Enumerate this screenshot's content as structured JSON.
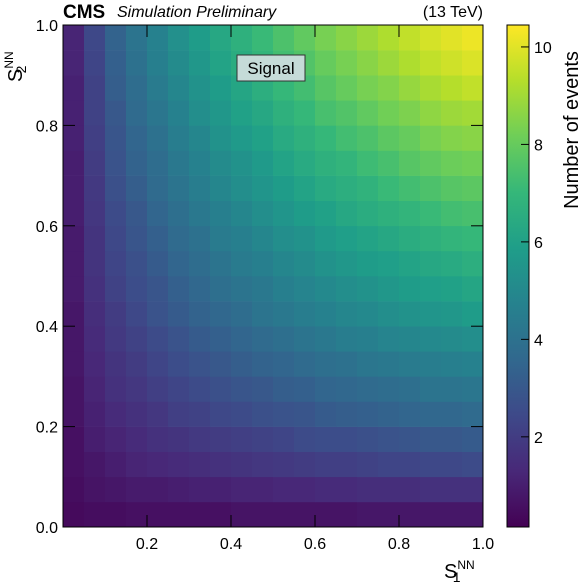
{
  "chart_data": {
    "type": "heatmap",
    "experiment": "CMS",
    "subtitle": "Simulation Preliminary",
    "energy": "(13 TeV)",
    "annotation": "Signal",
    "xlabel": {
      "base": "S",
      "sup": "NN",
      "sub": "1"
    },
    "ylabel": {
      "base": "S",
      "sup": "NN",
      "sub": "2"
    },
    "colorbar_label": "Number of events",
    "colormap": "viridis",
    "xlim": [
      0,
      1
    ],
    "ylim": [
      0,
      1
    ],
    "xticks": [
      0.2,
      0.4,
      0.6,
      0.8,
      {
        "value": 1,
        "label": "1.0"
      }
    ],
    "yticks": [
      {
        "value": 0,
        "label": "0.0"
      },
      0.2,
      0.4,
      0.6,
      0.8,
      {
        "value": 1,
        "label": "1.0"
      }
    ],
    "zlim": [
      0.15,
      10.45
    ],
    "zticks": [
      2,
      4,
      6,
      8,
      10
    ],
    "xbins": [
      0,
      0.05,
      0.1,
      0.15,
      0.2,
      0.25,
      0.3,
      0.35,
      0.4,
      0.45,
      0.5,
      0.55,
      0.6,
      0.65,
      0.7,
      0.75,
      0.8,
      0.85,
      0.9,
      0.95,
      1
    ],
    "ybins": [
      0,
      0.05,
      0.1,
      0.15,
      0.2,
      0.25,
      0.3,
      0.35,
      0.4,
      0.45,
      0.5,
      0.55,
      0.6,
      0.65,
      0.7,
      0.75,
      0.8,
      0.85,
      0.9,
      0.95,
      1
    ],
    "z": [
      [
        0.4,
        0.5,
        0.5,
        0.6,
        0.6,
        0.6,
        0.6,
        0.6,
        0.7,
        0.7,
        0.7,
        0.7,
        0.7,
        0.7,
        0.8,
        0.8,
        0.8,
        0.8,
        0.8,
        0.8
      ],
      [
        0.5,
        0.7,
        0.8,
        0.9,
        0.9,
        1.0,
        1.1,
        1.1,
        1.2,
        1.2,
        1.3,
        1.3,
        1.4,
        1.4,
        1.5,
        1.5,
        1.5,
        1.6,
        1.6,
        1.6
      ],
      [
        0.6,
        0.8,
        1.0,
        1.2,
        1.3,
        1.4,
        1.5,
        1.6,
        1.7,
        1.8,
        1.9,
        2.0,
        2.1,
        2.1,
        2.2,
        2.3,
        2.3,
        2.4,
        2.4,
        2.5
      ],
      [
        0.6,
        1.0,
        1.2,
        1.4,
        1.6,
        1.7,
        1.9,
        2.0,
        2.1,
        2.2,
        2.3,
        2.5,
        2.6,
        2.6,
        2.7,
        2.8,
        2.9,
        3.0,
        3.0,
        3.1
      ],
      [
        0.7,
        1.1,
        1.4,
        1.6,
        1.8,
        2.1,
        2.2,
        2.4,
        2.5,
        2.7,
        2.8,
        2.9,
        3.1,
        3.2,
        3.3,
        3.4,
        3.5,
        3.6,
        3.6,
        3.7
      ],
      [
        0.7,
        1.2,
        1.6,
        1.8,
        2.1,
        2.3,
        2.5,
        2.7,
        2.9,
        3.0,
        3.2,
        3.3,
        3.5,
        3.6,
        3.7,
        3.8,
        3.9,
        4.1,
        4.1,
        4.2
      ],
      [
        0.8,
        1.3,
        1.7,
        2.0,
        2.3,
        2.6,
        2.8,
        3.0,
        3.2,
        3.4,
        3.5,
        3.7,
        3.9,
        4.0,
        4.2,
        4.3,
        4.4,
        4.5,
        4.6,
        4.7
      ],
      [
        0.8,
        1.4,
        1.9,
        2.2,
        2.5,
        2.8,
        3.1,
        3.3,
        3.5,
        3.7,
        3.9,
        4.1,
        4.3,
        4.5,
        4.6,
        4.8,
        4.9,
        5.0,
        5.1,
        5.2
      ],
      [
        0.8,
        1.5,
        2.0,
        2.4,
        2.8,
        3.1,
        3.4,
        3.6,
        3.8,
        4.1,
        4.3,
        4.5,
        4.7,
        4.9,
        5.0,
        5.2,
        5.4,
        5.5,
        5.6,
        5.8
      ],
      [
        0.9,
        1.6,
        2.2,
        2.6,
        2.9,
        3.3,
        3.6,
        3.9,
        4.1,
        4.3,
        4.6,
        4.8,
        5.0,
        5.2,
        5.4,
        5.6,
        5.8,
        5.9,
        6.0,
        6.2
      ],
      [
        0.9,
        1.7,
        2.3,
        2.7,
        3.1,
        3.5,
        3.8,
        4.1,
        4.4,
        4.6,
        4.9,
        5.1,
        5.4,
        5.6,
        5.8,
        5.9,
        6.1,
        6.3,
        6.4,
        6.6
      ],
      [
        0.9,
        1.7,
        2.4,
        2.9,
        3.3,
        3.7,
        4.0,
        4.4,
        4.6,
        4.9,
        5.2,
        5.4,
        5.7,
        5.9,
        6.1,
        6.3,
        6.5,
        6.7,
        6.9,
        7.0
      ],
      [
        1.0,
        1.8,
        2.5,
        3.0,
        3.5,
        3.9,
        4.3,
        4.6,
        4.9,
        5.2,
        5.5,
        5.8,
        6.0,
        6.3,
        6.5,
        6.7,
        6.9,
        7.1,
        7.3,
        7.4
      ],
      [
        1.0,
        1.9,
        2.7,
        3.2,
        3.7,
        4.1,
        4.5,
        4.9,
        5.2,
        5.5,
        5.8,
        6.1,
        6.4,
        6.6,
        6.8,
        7.1,
        7.3,
        7.5,
        7.7,
        7.8
      ],
      [
        1.0,
        2.0,
        2.8,
        3.4,
        3.8,
        4.3,
        4.7,
        5.1,
        5.4,
        5.7,
        6.1,
        6.4,
        6.7,
        6.9,
        7.2,
        7.4,
        7.7,
        7.9,
        8.1,
        8.2
      ],
      [
        1.1,
        2.1,
        2.9,
        3.5,
        4.0,
        4.5,
        4.9,
        5.4,
        5.7,
        6.0,
        6.4,
        6.7,
        7.0,
        7.3,
        7.5,
        7.8,
        8.0,
        8.3,
        8.5,
        8.6
      ],
      [
        1.1,
        2.2,
        3.0,
        3.7,
        4.2,
        4.7,
        5.2,
        5.6,
        6.0,
        6.3,
        6.7,
        7.0,
        7.4,
        7.6,
        7.9,
        8.2,
        8.4,
        8.7,
        8.9,
        9.0
      ],
      [
        1.1,
        2.2,
        3.2,
        3.8,
        4.4,
        4.9,
        5.4,
        5.8,
        6.2,
        6.6,
        7.0,
        7.3,
        7.7,
        8.0,
        8.3,
        8.5,
        8.8,
        9.1,
        9.3,
        9.5
      ],
      [
        1.2,
        2.3,
        3.3,
        4.0,
        4.6,
        5.1,
        5.6,
        6.1,
        6.5,
        6.9,
        7.3,
        7.6,
        8.0,
        8.3,
        8.6,
        8.9,
        9.2,
        9.5,
        9.7,
        9.9
      ],
      [
        1.2,
        2.4,
        3.4,
        4.1,
        4.7,
        5.3,
        5.8,
        6.3,
        6.7,
        7.1,
        7.5,
        7.9,
        8.3,
        8.6,
        8.9,
        9.2,
        9.5,
        9.8,
        10.0,
        10.2
      ]
    ]
  }
}
